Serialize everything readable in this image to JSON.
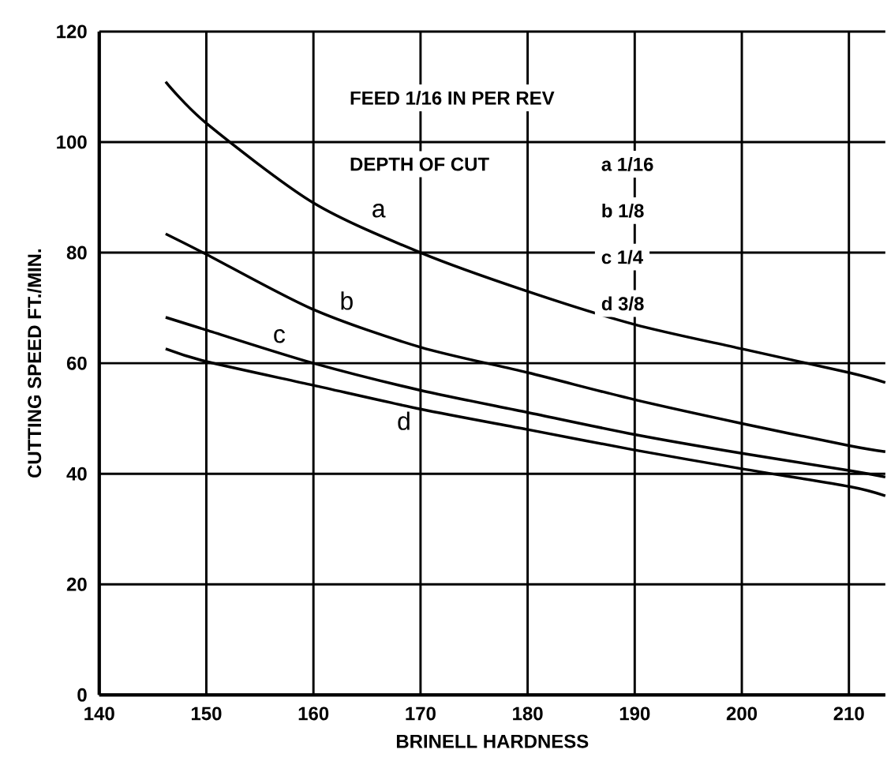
{
  "chart_data": {
    "type": "line",
    "xlabel": "BRINELL HARDNESS",
    "ylabel": "CUTTING SPEED FT./MIN.",
    "x": [
      146.2,
      150,
      160,
      170,
      180,
      190,
      200,
      210,
      213.4
    ],
    "series": [
      {
        "name": "a",
        "color": "#000000",
        "values": [
          110.9,
          103.4,
          89,
          80,
          73,
          67,
          62.6,
          58.3,
          56.5
        ]
      },
      {
        "name": "b",
        "color": "#000000",
        "values": [
          83.4,
          79.7,
          69.7,
          62.9,
          58.3,
          53.4,
          49.1,
          45.1,
          44
        ]
      },
      {
        "name": "c",
        "color": "#000000",
        "values": [
          68.3,
          66,
          60,
          55.1,
          51.1,
          47.1,
          43.7,
          40.6,
          39.4
        ]
      },
      {
        "name": "d",
        "color": "#000000",
        "values": [
          62.6,
          60.3,
          56,
          51.7,
          48,
          44.3,
          40.9,
          37.7,
          36
        ]
      }
    ],
    "annotations": [
      "FEED 1/16 IN PER REV",
      "DEPTH OF CUT",
      "a 1/16",
      "b 1/8",
      "c 1/4",
      "d 3/8"
    ],
    "xlim": [
      140,
      213.4
    ],
    "ylim": [
      0,
      120
    ],
    "xticks": [
      140,
      150,
      160,
      170,
      180,
      190,
      200,
      210
    ],
    "yticks": [
      0,
      20,
      40,
      60,
      80,
      100,
      120
    ],
    "grid": true,
    "marker": "none",
    "line_style": "solid"
  }
}
